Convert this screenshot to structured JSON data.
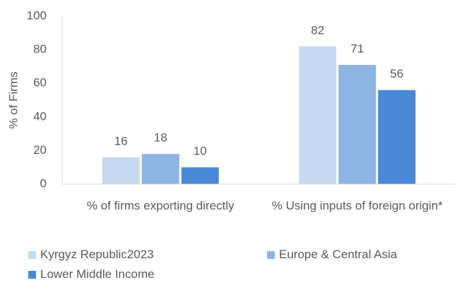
{
  "chart_data": {
    "type": "bar",
    "y_label": "% of Firms",
    "categories": [
      "% of firms exporting directly",
      "% Using inputs of foreign origin*"
    ],
    "series": [
      {
        "name": "Kyrgyz Republic2023",
        "color": "#c6d9f1",
        "values": [
          16,
          82
        ]
      },
      {
        "name": "Europe & Central Asia",
        "color": "#8eb4e3",
        "values": [
          18,
          71
        ]
      },
      {
        "name": "Lower Middle Income",
        "color": "#4a88d8",
        "values": [
          10,
          56
        ]
      }
    ],
    "ylim": [
      0,
      100
    ],
    "yticks": [
      0,
      20,
      40,
      60,
      80,
      100
    ],
    "grid": false,
    "legend": "bottom"
  }
}
